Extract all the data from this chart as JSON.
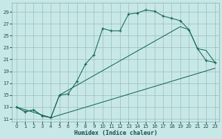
{
  "xlabel": "Humidex (Indice chaleur)",
  "bg_color": "#c8e8e8",
  "grid_color": "#99bbbb",
  "line_color": "#1a6b5a",
  "xlim": [
    -0.5,
    23.5
  ],
  "ylim": [
    10.5,
    30.5
  ],
  "xticks": [
    0,
    1,
    2,
    3,
    4,
    5,
    6,
    7,
    8,
    9,
    10,
    11,
    12,
    13,
    14,
    15,
    16,
    17,
    18,
    19,
    20,
    21,
    22,
    23
  ],
  "yticks": [
    11,
    13,
    15,
    17,
    19,
    21,
    23,
    25,
    27,
    29
  ],
  "line1_x": [
    0,
    1,
    2,
    3,
    4,
    5,
    6,
    7,
    8,
    9,
    10,
    11,
    12,
    13,
    14,
    15,
    16,
    17,
    18,
    19,
    20,
    21,
    22,
    23
  ],
  "line1_y": [
    13,
    12.2,
    12.5,
    11.5,
    11.2,
    15.0,
    15.2,
    17.3,
    20.2,
    21.8,
    26.2,
    25.8,
    25.8,
    28.6,
    28.8,
    29.3,
    29.1,
    28.3,
    27.9,
    27.5,
    26.0,
    22.8,
    20.8,
    20.5
  ],
  "line2_x": [
    0,
    1,
    2,
    3,
    4,
    23
  ],
  "line2_y": [
    13,
    12.2,
    12.5,
    11.5,
    11.2,
    19.5
  ],
  "line3_x": [
    0,
    4,
    5,
    19,
    20,
    21,
    22,
    23
  ],
  "line3_y": [
    13,
    11.2,
    15.0,
    26.5,
    26.0,
    22.8,
    22.5,
    20.5
  ]
}
